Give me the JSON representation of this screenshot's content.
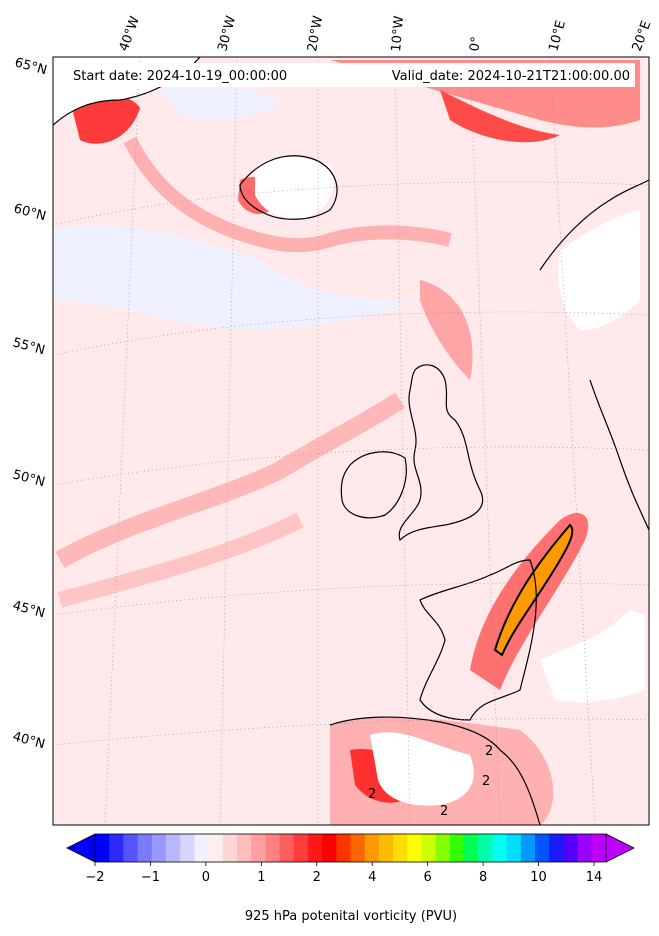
{
  "header": {
    "start_label": "Start date: 2024-10-19_00:00:00",
    "valid_label": "Valid_date: 2024-10-21T21:00:00.00"
  },
  "map": {
    "projection": "stereographic",
    "field": "925 hPa potential vorticity",
    "lon_labels": [
      "40°W",
      "30°W",
      "20°W",
      "10°W",
      "0°",
      "10°E",
      "20°E"
    ],
    "lat_labels": [
      "65°N",
      "60°N",
      "55°N",
      "50°N",
      "45°N",
      "40°N"
    ],
    "contour_labels": [
      "2",
      "2",
      "2",
      "2"
    ],
    "background_color": "#ffe9ea",
    "coast_color": "#000000"
  },
  "colorbar": {
    "title": "925 hPa potenital vorticity (PVU)",
    "tick_labels": [
      "−2",
      "−1",
      "0",
      "1",
      "2",
      "4",
      "6",
      "8",
      "10",
      "14"
    ],
    "colors": [
      "#0000ff",
      "#2a2aff",
      "#5555ff",
      "#7a7aff",
      "#9898ff",
      "#b8b8ff",
      "#d6d6ff",
      "#f0f0ff",
      "#ffeeee",
      "#ffd6d6",
      "#ffbcbc",
      "#ffa0a0",
      "#ff8080",
      "#ff5e5e",
      "#ff3c3c",
      "#ff1a1a",
      "#ff0000",
      "#ff3300",
      "#ff6600",
      "#ff9900",
      "#ffbb00",
      "#ffdd00",
      "#ffff00",
      "#ccff00",
      "#88ff00",
      "#33ff00",
      "#00ff55",
      "#00ffaa",
      "#00ffee",
      "#00ddff",
      "#0099ff",
      "#0055ff",
      "#1a1aff",
      "#5500ff",
      "#9900ff",
      "#bb00ff"
    ],
    "under_color": "#0000ff",
    "over_color": "#bb00ff"
  }
}
